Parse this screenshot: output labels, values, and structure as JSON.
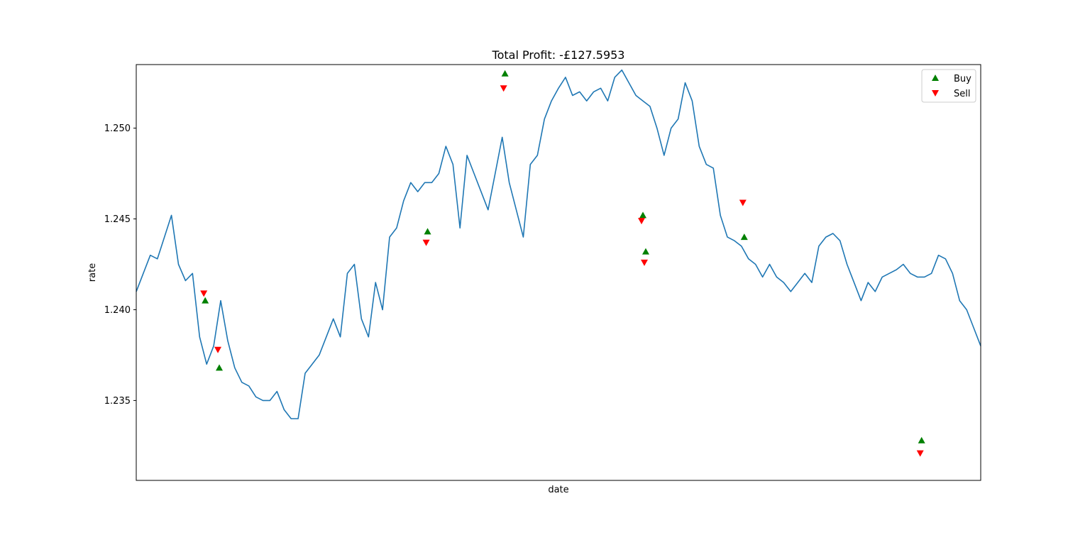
{
  "chart_data": {
    "type": "line",
    "title": "Total Profit: -£127.5953",
    "xlabel": "date",
    "ylabel": "rate",
    "xlim": [
      0,
      600
    ],
    "ylim": [
      1.2306,
      1.2535
    ],
    "yticks": [
      "1.235",
      "1.240",
      "1.245",
      "1.250"
    ],
    "ytick_values": [
      1.235,
      1.24,
      1.245,
      1.25
    ],
    "grid": false,
    "legend": {
      "placement": "top-right",
      "entries": [
        "Buy",
        "Sell"
      ]
    },
    "colors": {
      "line": "#1f77b4",
      "buy": "#008000",
      "sell": "#ff0000"
    },
    "series": [
      {
        "kind": "line",
        "x": [
          0,
          5,
          10,
          15,
          20,
          25,
          30,
          35,
          40,
          45,
          50,
          55,
          60,
          65,
          70,
          75,
          80,
          85,
          90,
          95,
          100,
          105,
          110,
          115,
          120,
          125,
          130,
          135,
          140,
          145,
          150,
          155,
          160,
          165,
          170,
          175,
          180,
          185,
          190,
          195,
          200,
          205,
          210,
          215,
          220,
          225,
          230,
          235,
          240,
          245,
          250,
          255,
          260,
          265,
          270,
          275,
          280,
          285,
          290,
          295,
          300,
          305,
          310,
          315,
          320,
          325,
          330,
          335,
          340,
          345,
          350,
          355,
          360,
          365,
          370,
          375,
          380,
          385,
          390,
          395,
          400,
          405,
          410,
          415,
          420,
          425,
          430,
          435,
          440,
          445,
          450,
          455,
          460,
          465,
          470,
          475,
          480,
          485,
          490,
          495,
          500,
          505,
          510,
          515,
          520,
          525,
          530,
          535,
          540,
          545,
          550,
          555,
          560,
          565,
          570,
          575,
          580,
          585,
          590,
          595,
          600
        ],
        "values": [
          1.241,
          1.242,
          1.243,
          1.2428,
          1.244,
          1.2452,
          1.2425,
          1.2416,
          1.242,
          1.2385,
          1.237,
          1.238,
          1.2405,
          1.2383,
          1.2368,
          1.236,
          1.2358,
          1.2352,
          1.235,
          1.235,
          1.2355,
          1.2345,
          1.234,
          1.234,
          1.2365,
          1.237,
          1.2375,
          1.2385,
          1.2395,
          1.2385,
          1.242,
          1.2425,
          1.2395,
          1.2385,
          1.2415,
          1.24,
          1.244,
          1.2445,
          1.246,
          1.247,
          1.2465,
          1.247,
          1.247,
          1.2475,
          1.249,
          1.248,
          1.2445,
          1.2485,
          1.2475,
          1.2465,
          1.2455,
          1.2475,
          1.2495,
          1.247,
          1.2455,
          1.244,
          1.248,
          1.2485,
          1.2505,
          1.2515,
          1.2522,
          1.2528,
          1.2518,
          1.252,
          1.2515,
          1.252,
          1.2522,
          1.2515,
          1.2528,
          1.2532,
          1.2525,
          1.2518,
          1.2515,
          1.2512,
          1.25,
          1.2485,
          1.25,
          1.2505,
          1.2525,
          1.2515,
          1.249,
          1.248,
          1.2478,
          1.2452,
          1.244,
          1.2438,
          1.2435,
          1.2428,
          1.2425,
          1.2418,
          1.2425,
          1.2418,
          1.2415,
          1.241,
          1.2415,
          1.242,
          1.2415,
          1.2435,
          1.244,
          1.2442,
          1.2438,
          1.2425,
          1.2415,
          1.2405,
          1.2415,
          1.241,
          1.2418,
          1.242,
          1.2422,
          1.2425,
          1.242,
          1.2418,
          1.2418,
          1.242,
          1.243,
          1.2428,
          1.242,
          1.2405,
          1.24,
          1.239,
          1.238
        ]
      }
    ],
    "buy_points": {
      "x": [
        49,
        59,
        207,
        262,
        360,
        362,
        432,
        558
      ],
      "values": [
        1.2405,
        1.2368,
        1.2443,
        1.253,
        1.2452,
        1.2432,
        1.244,
        1.2328
      ]
    },
    "sell_points": {
      "x": [
        48,
        58,
        206,
        261,
        359,
        361,
        431,
        557
      ],
      "values": [
        1.2409,
        1.2378,
        1.2437,
        1.2522,
        1.2449,
        1.2426,
        1.2459,
        1.2321
      ]
    }
  }
}
